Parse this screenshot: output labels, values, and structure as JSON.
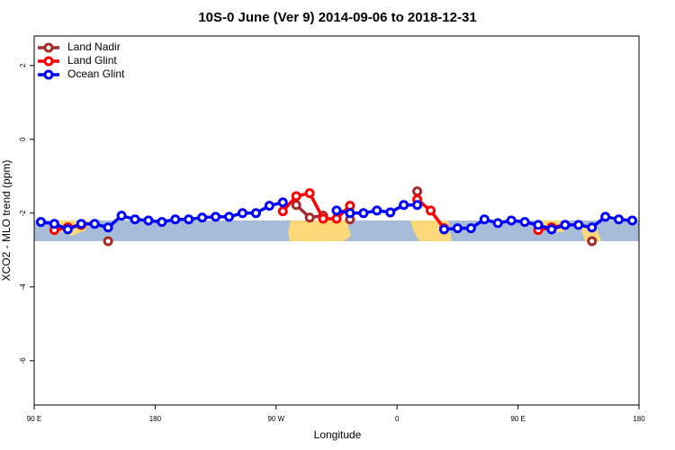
{
  "chart_data": {
    "type": "line",
    "title": "10S-0 June (Ver 9)   2014-09-06 to 2018-12-31",
    "xlabel": "Longitude",
    "ylabel": "XCO2 - MLO trend (ppm)",
    "x": [
      95,
      105,
      115,
      125,
      135,
      145,
      155,
      165,
      175,
      185,
      195,
      205,
      215,
      225,
      235,
      245,
      255,
      265,
      275,
      285,
      295,
      305,
      315,
      325,
      335,
      345,
      355,
      365,
      375,
      385,
      395,
      405,
      415,
      425,
      435,
      445,
      455,
      465,
      475,
      485,
      495,
      505,
      515,
      525,
      535
    ],
    "series": [
      {
        "name": "Land Nadir",
        "color": "#a52a2a",
        "values": [
          null,
          null,
          -2.39,
          -2.32,
          null,
          -2.76,
          null,
          null,
          null,
          null,
          null,
          null,
          null,
          null,
          null,
          null,
          null,
          null,
          null,
          -1.78,
          -2.12,
          -2.07,
          null,
          -2.17,
          null,
          null,
          null,
          null,
          -1.41,
          null,
          null,
          null,
          null,
          null,
          null,
          null,
          null,
          null,
          -2.39,
          null,
          null,
          -2.76,
          null,
          null,
          null
        ]
      },
      {
        "name": "Land Glint",
        "color": "#ff0000",
        "values": [
          null,
          -2.46,
          -2.39,
          -2.32,
          null,
          null,
          null,
          null,
          null,
          null,
          null,
          null,
          null,
          null,
          null,
          null,
          null,
          null,
          -1.95,
          -1.54,
          -1.46,
          -2.15,
          -2.15,
          -1.8,
          null,
          null,
          null,
          null,
          -1.63,
          -1.93,
          -2.41,
          null,
          null,
          null,
          null,
          null,
          null,
          -2.46,
          -2.39,
          -2.32,
          null,
          null,
          null,
          null,
          null
        ]
      },
      {
        "name": "Ocean Glint",
        "color": "#0000ff",
        "values": [
          -2.24,
          -2.29,
          -2.44,
          -2.29,
          -2.29,
          -2.39,
          -2.07,
          -2.17,
          -2.2,
          -2.24,
          -2.17,
          -2.17,
          -2.12,
          -2.1,
          -2.1,
          -2.0,
          -2.0,
          -1.8,
          -1.71,
          null,
          null,
          null,
          -1.93,
          -2.0,
          -2.0,
          -1.93,
          -1.98,
          -1.78,
          -1.78,
          null,
          -2.44,
          -2.41,
          -2.41,
          -2.17,
          -2.27,
          -2.2,
          -2.24,
          -2.32,
          -2.44,
          -2.32,
          -2.32,
          -2.39,
          -2.1,
          -2.17,
          -2.2
        ]
      }
    ],
    "xlim": [
      90,
      540
    ],
    "xticks": [
      {
        "value": 90,
        "label": "90 E"
      },
      180,
      {
        "value": 270,
        "label": "90 W"
      },
      {
        "value": 360,
        "label": "0"
      },
      {
        "value": 450,
        "label": "90 E"
      },
      {
        "value": 540,
        "label": "180"
      }
    ],
    "ylim": [
      -7.2,
      2.8
    ],
    "yticks": [
      -6,
      -4,
      -2,
      0,
      2
    ],
    "legend": "upper left"
  }
}
